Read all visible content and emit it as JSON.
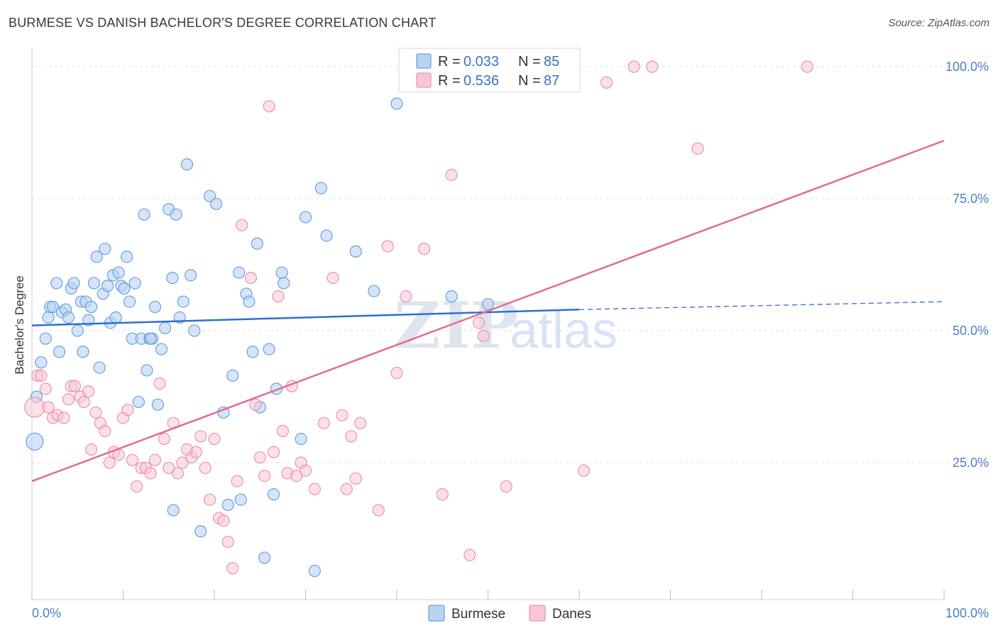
{
  "title": "BURMESE VS DANISH BACHELOR'S DEGREE CORRELATION CHART",
  "source": "Source: ZipAtlas.com",
  "watermark": {
    "zip": "ZIP",
    "atlas": "atlas"
  },
  "colors": {
    "burmese_fill": "#b9d3f3",
    "burmese_stroke": "#6a9fde",
    "burmese_line": "#2f6fd0",
    "danes_fill": "#f9c6d6",
    "danes_stroke": "#e993b0",
    "danes_line": "#e36b95",
    "grid": "#e2e2e2",
    "tick_text": "#4a7fc9"
  },
  "chart_data": {
    "type": "scatter",
    "xlabel": "",
    "ylabel": "Bachelor's Degree",
    "xlim": [
      0,
      100
    ],
    "ylim": [
      0,
      100
    ],
    "x_tick_labels": [
      "0.0%",
      "100.0%"
    ],
    "y_ticks": [
      25,
      50,
      75,
      100
    ],
    "y_tick_labels": [
      "25.0%",
      "50.0%",
      "75.0%",
      "100.0%"
    ],
    "grid": "horizontal dashed",
    "legend": {
      "placement": "top-center",
      "entries": [
        {
          "r_label": "R =",
          "r_value": "0.033",
          "n_label": "N =",
          "n_value": "85"
        },
        {
          "r_label": "R =",
          "r_value": "0.536",
          "n_label": "N =",
          "n_value": "87"
        }
      ]
    },
    "series": [
      {
        "name": "Burmese",
        "trend": {
          "x0": 0,
          "y0": 51,
          "x1": 60,
          "y1": 54,
          "x_dash_end": 100,
          "y_dash_end": 55.5
        },
        "points": [
          [
            0.3,
            29
          ],
          [
            0.5,
            37.5
          ],
          [
            1.0,
            44
          ],
          [
            1.5,
            48.5
          ],
          [
            1.8,
            52.5
          ],
          [
            2.0,
            54.5
          ],
          [
            2.3,
            54.5
          ],
          [
            2.7,
            59
          ],
          [
            3.0,
            46
          ],
          [
            3.3,
            53.5
          ],
          [
            3.7,
            54
          ],
          [
            4.0,
            52.5
          ],
          [
            4.3,
            58
          ],
          [
            4.6,
            59
          ],
          [
            5.0,
            50
          ],
          [
            5.4,
            55.5
          ],
          [
            5.6,
            46
          ],
          [
            5.9,
            55.5
          ],
          [
            6.2,
            52
          ],
          [
            6.5,
            54.5
          ],
          [
            6.8,
            59
          ],
          [
            7.1,
            64
          ],
          [
            7.4,
            43
          ],
          [
            7.8,
            57
          ],
          [
            8.0,
            65.5
          ],
          [
            8.3,
            58.5
          ],
          [
            8.6,
            51.5
          ],
          [
            8.9,
            60.5
          ],
          [
            9.2,
            52.5
          ],
          [
            9.5,
            61
          ],
          [
            9.8,
            58.5
          ],
          [
            10.1,
            58
          ],
          [
            10.4,
            64
          ],
          [
            10.7,
            55.5
          ],
          [
            11.0,
            48.5
          ],
          [
            11.3,
            59
          ],
          [
            11.7,
            36.5
          ],
          [
            12.0,
            48.5
          ],
          [
            12.3,
            72
          ],
          [
            12.6,
            42.5
          ],
          [
            12.9,
            48.5
          ],
          [
            13.2,
            48.5
          ],
          [
            13.5,
            54.5
          ],
          [
            13.8,
            36
          ],
          [
            14.2,
            46.5
          ],
          [
            14.6,
            50.5
          ],
          [
            15.0,
            73
          ],
          [
            15.4,
            60
          ],
          [
            15.8,
            72
          ],
          [
            16.2,
            52.5
          ],
          [
            16.6,
            55.5
          ],
          [
            17.0,
            81.5
          ],
          [
            17.4,
            60.5
          ],
          [
            17.8,
            50
          ],
          [
            18.5,
            12
          ],
          [
            19.5,
            75.5
          ],
          [
            20.2,
            74
          ],
          [
            21.0,
            34.5
          ],
          [
            21.5,
            17
          ],
          [
            22.0,
            41.5
          ],
          [
            22.7,
            61
          ],
          [
            22.9,
            18
          ],
          [
            23.5,
            57
          ],
          [
            23.8,
            55.5
          ],
          [
            24.2,
            46
          ],
          [
            24.7,
            66.5
          ],
          [
            25.0,
            35.5
          ],
          [
            25.5,
            7
          ],
          [
            26.0,
            46.5
          ],
          [
            26.5,
            19
          ],
          [
            26.8,
            39
          ],
          [
            27.4,
            61
          ],
          [
            27.6,
            59
          ],
          [
            29.5,
            29.5
          ],
          [
            30.0,
            71.5
          ],
          [
            31.0,
            4.5
          ],
          [
            31.7,
            77
          ],
          [
            32.3,
            68
          ],
          [
            35.5,
            65
          ],
          [
            37.5,
            57.5
          ],
          [
            40.0,
            93
          ],
          [
            46.0,
            56.5
          ],
          [
            50.0,
            55
          ],
          [
            15.5,
            16
          ],
          [
            13.0,
            48.5
          ]
        ]
      },
      {
        "name": "Danes",
        "trend": {
          "x0": 0,
          "y0": 21.5,
          "x1": 100,
          "y1": 86
        },
        "points": [
          [
            0.3,
            35.5
          ],
          [
            0.6,
            41.5
          ],
          [
            1.0,
            41.5
          ],
          [
            1.5,
            39
          ],
          [
            1.8,
            35.5
          ],
          [
            2.3,
            33.5
          ],
          [
            2.8,
            34
          ],
          [
            3.5,
            33.5
          ],
          [
            4.0,
            37
          ],
          [
            4.3,
            39.5
          ],
          [
            4.7,
            39.5
          ],
          [
            5.3,
            37.5
          ],
          [
            5.7,
            36.5
          ],
          [
            6.2,
            38.5
          ],
          [
            6.5,
            27.5
          ],
          [
            7.0,
            34.5
          ],
          [
            7.5,
            32.5
          ],
          [
            8.0,
            31
          ],
          [
            8.5,
            25
          ],
          [
            9.0,
            27
          ],
          [
            9.5,
            26.5
          ],
          [
            10.0,
            33.5
          ],
          [
            10.5,
            35
          ],
          [
            11.0,
            25.5
          ],
          [
            11.5,
            20.5
          ],
          [
            12.0,
            24
          ],
          [
            12.5,
            24
          ],
          [
            13.0,
            23
          ],
          [
            13.5,
            25.5
          ],
          [
            14.0,
            40
          ],
          [
            14.5,
            29.5
          ],
          [
            15.0,
            24
          ],
          [
            15.5,
            32.5
          ],
          [
            16.0,
            23
          ],
          [
            16.5,
            25
          ],
          [
            17.0,
            27.5
          ],
          [
            17.5,
            26
          ],
          [
            18.0,
            27
          ],
          [
            18.5,
            30
          ],
          [
            19.0,
            24
          ],
          [
            19.5,
            18
          ],
          [
            20.0,
            29.5
          ],
          [
            20.5,
            14.5
          ],
          [
            21.0,
            14
          ],
          [
            21.5,
            10
          ],
          [
            22.0,
            5
          ],
          [
            22.5,
            21.5
          ],
          [
            23.0,
            70
          ],
          [
            24.0,
            60
          ],
          [
            24.5,
            36
          ],
          [
            25.0,
            26
          ],
          [
            25.5,
            22.5
          ],
          [
            26.0,
            92.5
          ],
          [
            26.5,
            27
          ],
          [
            27.0,
            56.5
          ],
          [
            27.5,
            31
          ],
          [
            28.0,
            23
          ],
          [
            28.5,
            39.5
          ],
          [
            29.0,
            22.5
          ],
          [
            29.5,
            25
          ],
          [
            30.0,
            23.5
          ],
          [
            31.0,
            20
          ],
          [
            32.0,
            32.5
          ],
          [
            33.0,
            60
          ],
          [
            34.0,
            34
          ],
          [
            35.0,
            30
          ],
          [
            35.5,
            22
          ],
          [
            36.0,
            32.5
          ],
          [
            38.0,
            16
          ],
          [
            39.0,
            66
          ],
          [
            40.0,
            42
          ],
          [
            41.0,
            56.5
          ],
          [
            43.0,
            65.5
          ],
          [
            45.0,
            19
          ],
          [
            46.0,
            79.5
          ],
          [
            48.0,
            7.5
          ],
          [
            49.0,
            51.5
          ],
          [
            49.5,
            49
          ],
          [
            52.0,
            20.5
          ],
          [
            58.0,
            100
          ],
          [
            60.5,
            23.5
          ],
          [
            63.0,
            97
          ],
          [
            66.0,
            100
          ],
          [
            68.0,
            100
          ],
          [
            73.0,
            84.5
          ],
          [
            85.0,
            100
          ],
          [
            34.5,
            20
          ]
        ]
      }
    ]
  },
  "bottom_legend": {
    "burmese": "Burmese",
    "danes": "Danes"
  }
}
